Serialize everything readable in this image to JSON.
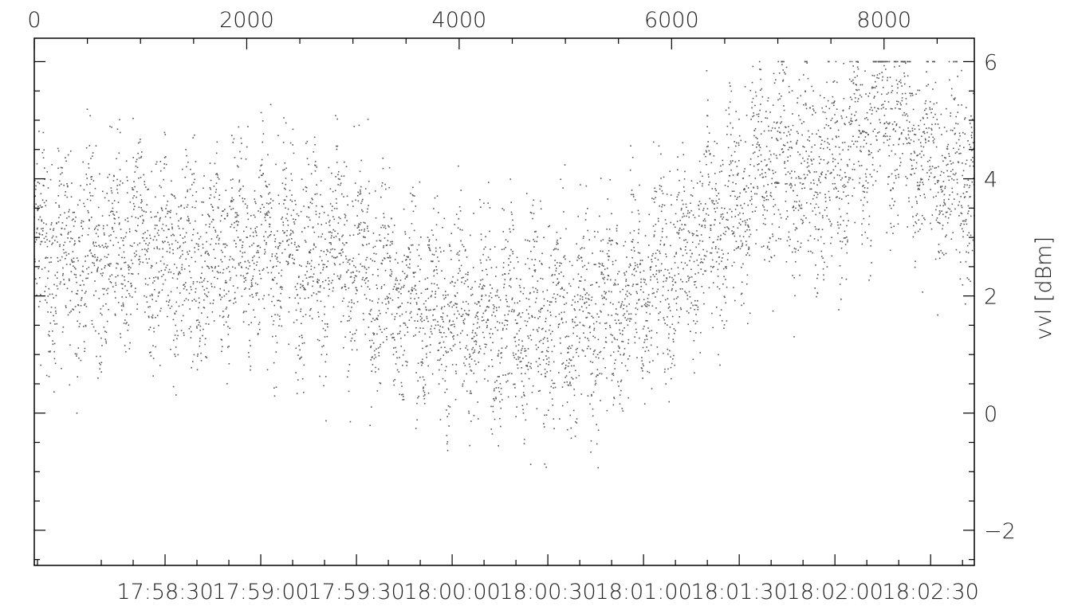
{
  "chart_data": {
    "type": "scatter",
    "title": "",
    "ylabel": "vvl [dBm]",
    "xlabel_bottom": "",
    "xlabel_top": "",
    "top_axis": {
      "range": [
        0,
        8850
      ],
      "ticks": [
        0,
        2000,
        4000,
        6000,
        8000
      ],
      "tick_labels": [
        "0",
        "2000",
        "4000",
        "6000",
        "8000"
      ]
    },
    "bottom_axis": {
      "range_seconds": [
        -41,
        253.7
      ],
      "ticks_seconds": [
        0,
        30,
        60,
        90,
        120,
        150,
        180,
        210,
        240
      ],
      "tick_labels": [
        "17:58:30",
        "17:59:00",
        "17:59:30",
        "18:00:00",
        "18:00:30",
        "18:01:00",
        "18:01:30",
        "18:02:00",
        "18:02:30"
      ]
    },
    "ylim": [
      -2.6,
      6.4
    ],
    "yticks": [
      -2,
      0,
      2,
      4,
      6
    ],
    "ytick_labels": [
      "−2",
      "0",
      "2",
      "4",
      "6"
    ],
    "grid": false,
    "marker_color": "#555555",
    "n_points_shown": 5800,
    "segments_sample_index_vs_mean_dBm": [
      [
        0,
        2.7
      ],
      [
        500,
        2.7
      ],
      [
        1000,
        2.8
      ],
      [
        1500,
        2.6
      ],
      [
        2000,
        2.9
      ],
      [
        2500,
        2.8
      ],
      [
        3000,
        2.6
      ],
      [
        3500,
        1.9
      ],
      [
        4000,
        1.7
      ],
      [
        4500,
        1.6
      ],
      [
        5000,
        1.5
      ],
      [
        5500,
        1.9
      ],
      [
        6000,
        2.5
      ],
      [
        6500,
        3.5
      ],
      [
        7000,
        4.3
      ],
      [
        7500,
        4.0
      ],
      [
        8000,
        5.3
      ],
      [
        8500,
        4.2
      ],
      [
        8850,
        4.0
      ]
    ],
    "value_spread_dBm": 1.1,
    "clip_max_dBm": 6.0
  }
}
